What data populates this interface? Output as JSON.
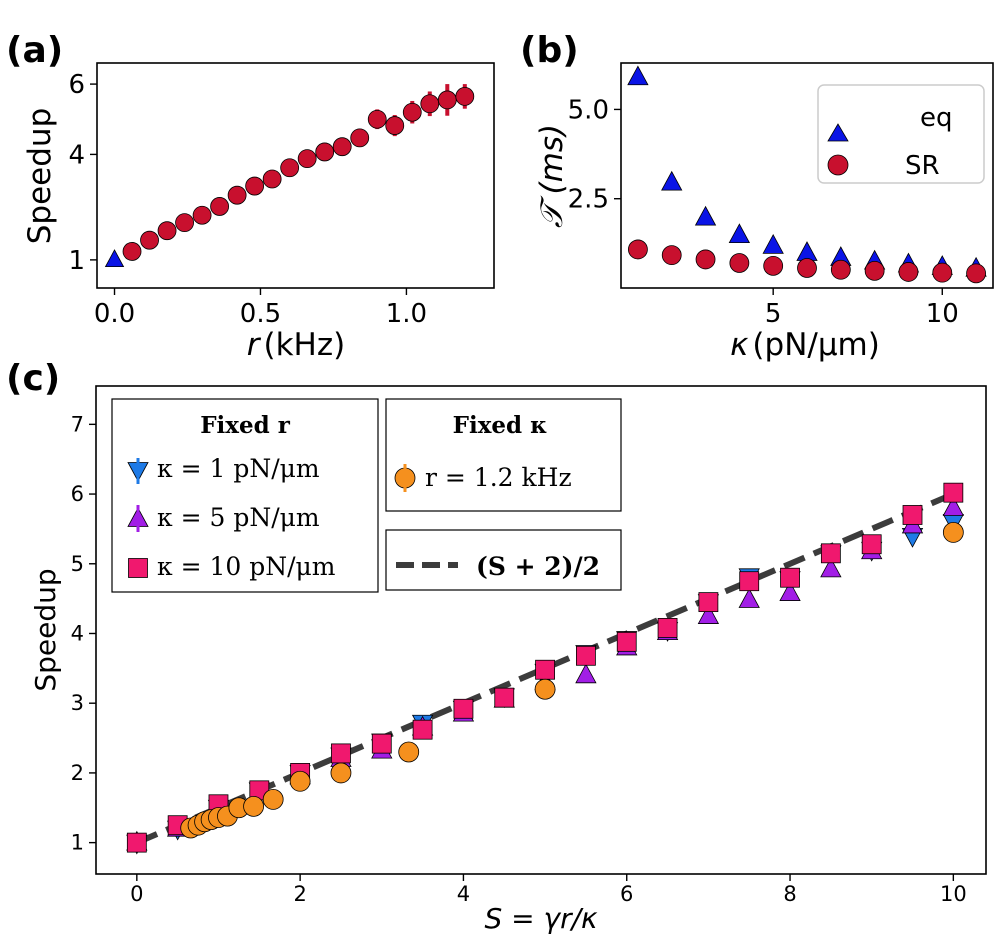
{
  "colors": {
    "blue": "#0a14e6",
    "crimson": "#c8102e",
    "magenta": "#f0186e",
    "purple": "#a21ee6",
    "lightblue": "#1e7ae6",
    "orange": "#f5901e",
    "dash": "#3c3c3c"
  },
  "chart_data": [
    {
      "panel": "(a)",
      "type": "scatter",
      "xlabel_var": "r",
      "xlabel_unit": "(kHz)",
      "ylabel": "Speedup",
      "xlim": [
        -0.06,
        1.3
      ],
      "ylim": [
        0.2,
        6.6
      ],
      "xticks": [
        0.0,
        0.5,
        1.0
      ],
      "xtick_labels": [
        "0.0",
        "0.5",
        "1.0"
      ],
      "yticks": [
        1,
        4,
        6
      ],
      "ytick_labels": [
        "1",
        "4",
        "6"
      ],
      "series": [
        {
          "name": "eq",
          "marker": "triangle",
          "color": "blue",
          "points": [
            {
              "x": 0.0,
              "y": 1.0
            }
          ]
        },
        {
          "name": "SR",
          "marker": "circle",
          "color": "crimson",
          "points": [
            {
              "x": 0.06,
              "y": 1.24,
              "err": 0.05
            },
            {
              "x": 0.12,
              "y": 1.56,
              "err": 0.06
            },
            {
              "x": 0.18,
              "y": 1.83,
              "err": 0.06
            },
            {
              "x": 0.24,
              "y": 2.06,
              "err": 0.07
            },
            {
              "x": 0.3,
              "y": 2.27,
              "err": 0.08
            },
            {
              "x": 0.36,
              "y": 2.52,
              "err": 0.09
            },
            {
              "x": 0.42,
              "y": 2.84,
              "err": 0.1
            },
            {
              "x": 0.48,
              "y": 3.1,
              "err": 0.12
            },
            {
              "x": 0.54,
              "y": 3.3,
              "err": 0.14
            },
            {
              "x": 0.6,
              "y": 3.62,
              "err": 0.15
            },
            {
              "x": 0.66,
              "y": 3.88,
              "err": 0.18
            },
            {
              "x": 0.72,
              "y": 4.07,
              "err": 0.2
            },
            {
              "x": 0.78,
              "y": 4.22,
              "err": 0.22
            },
            {
              "x": 0.84,
              "y": 4.47,
              "err": 0.25
            },
            {
              "x": 0.9,
              "y": 5.0,
              "err": 0.28
            },
            {
              "x": 0.96,
              "y": 4.82,
              "err": 0.3
            },
            {
              "x": 1.02,
              "y": 5.2,
              "err": 0.32
            },
            {
              "x": 1.08,
              "y": 5.44,
              "err": 0.35
            },
            {
              "x": 1.14,
              "y": 5.55,
              "err": 0.45
            },
            {
              "x": 1.2,
              "y": 5.65,
              "err": 0.35
            }
          ]
        }
      ]
    },
    {
      "panel": "(b)",
      "type": "scatter",
      "xlabel_var": "κ",
      "xlabel_unit": "(pN/μm)",
      "ylabel": "𝒯 (ms)",
      "xlim": [
        0.5,
        11.5
      ],
      "ylim": [
        0.0,
        6.3
      ],
      "xticks": [
        5,
        10
      ],
      "xtick_labels": [
        "5",
        "10"
      ],
      "yticks": [
        2.5,
        5.0
      ],
      "ytick_labels": [
        "2.5",
        "5.0"
      ],
      "legend": {
        "position": "top-right",
        "entries": [
          "eq",
          "SR"
        ]
      },
      "series": [
        {
          "name": "eq",
          "marker": "triangle",
          "color": "blue",
          "points": [
            {
              "x": 1,
              "y": 5.9
            },
            {
              "x": 2,
              "y": 2.95
            },
            {
              "x": 3,
              "y": 1.97
            },
            {
              "x": 4,
              "y": 1.48
            },
            {
              "x": 5,
              "y": 1.18
            },
            {
              "x": 6,
              "y": 0.98
            },
            {
              "x": 7,
              "y": 0.84
            },
            {
              "x": 8,
              "y": 0.74
            },
            {
              "x": 9,
              "y": 0.66
            },
            {
              "x": 10,
              "y": 0.59
            },
            {
              "x": 11,
              "y": 0.54
            }
          ]
        },
        {
          "name": "SR",
          "marker": "circle",
          "color": "crimson",
          "points": [
            {
              "x": 1,
              "y": 1.08
            },
            {
              "x": 2,
              "y": 0.92
            },
            {
              "x": 3,
              "y": 0.8
            },
            {
              "x": 4,
              "y": 0.7
            },
            {
              "x": 5,
              "y": 0.62
            },
            {
              "x": 6,
              "y": 0.56
            },
            {
              "x": 7,
              "y": 0.51
            },
            {
              "x": 8,
              "y": 0.48
            },
            {
              "x": 9,
              "y": 0.45
            },
            {
              "x": 10,
              "y": 0.43
            },
            {
              "x": 11,
              "y": 0.41
            }
          ]
        }
      ]
    },
    {
      "panel": "(c)",
      "type": "scatter",
      "xlabel": "S = γr/κ",
      "ylabel": "Speedup",
      "xlim": [
        -0.5,
        10.4
      ],
      "ylim": [
        0.55,
        7.55
      ],
      "xticks": [
        0,
        2,
        4,
        6,
        8,
        10
      ],
      "xtick_labels": [
        "0",
        "2",
        "4",
        "6",
        "8",
        "10"
      ],
      "yticks": [
        1,
        2,
        3,
        4,
        5,
        6,
        7
      ],
      "ytick_labels": [
        "1",
        "2",
        "3",
        "4",
        "5",
        "6",
        "7"
      ],
      "legend_fixed_r": {
        "title": "Fixed r",
        "entries": [
          "κ = 1 pN/μm",
          "κ = 5 pN/μm",
          "κ = 10 pN/μm"
        ]
      },
      "legend_fixed_k": {
        "title": "Fixed κ",
        "entries": [
          "r = 1.2 kHz",
          "(S + 2)/2"
        ]
      },
      "theory_line": {
        "label": "(S + 2)/2",
        "x": [
          0,
          10
        ],
        "y": [
          1,
          6
        ]
      },
      "series": [
        {
          "name": "κ = 1 pN/μm",
          "marker": "triangle-down",
          "color": "lightblue",
          "points": [
            {
              "x": 0,
              "y": 1.0
            },
            {
              "x": 0.5,
              "y": 1.2
            },
            {
              "x": 1.0,
              "y": 1.5
            },
            {
              "x": 1.5,
              "y": 1.75
            },
            {
              "x": 2.0,
              "y": 2.0
            },
            {
              "x": 2.5,
              "y": 2.25
            },
            {
              "x": 3.0,
              "y": 2.45
            },
            {
              "x": 3.5,
              "y": 2.72
            },
            {
              "x": 4.0,
              "y": 2.92
            },
            {
              "x": 4.5,
              "y": 3.1
            },
            {
              "x": 5.0,
              "y": 3.45
            },
            {
              "x": 5.5,
              "y": 3.72
            },
            {
              "x": 6.0,
              "y": 3.92
            },
            {
              "x": 6.5,
              "y": 4.05
            },
            {
              "x": 7.0,
              "y": 4.45
            },
            {
              "x": 7.5,
              "y": 4.82
            },
            {
              "x": 8.0,
              "y": 4.78
            },
            {
              "x": 8.5,
              "y": 5.15
            },
            {
              "x": 9.0,
              "y": 5.2
            },
            {
              "x": 9.5,
              "y": 5.4
            },
            {
              "x": 10.0,
              "y": 5.6
            }
          ]
        },
        {
          "name": "κ = 5 pN/μm",
          "marker": "triangle-up",
          "color": "purple",
          "points": [
            {
              "x": 0,
              "y": 1.0
            },
            {
              "x": 0.5,
              "y": 1.2
            },
            {
              "x": 1.0,
              "y": 1.45
            },
            {
              "x": 1.5,
              "y": 1.72
            },
            {
              "x": 2.0,
              "y": 1.95
            },
            {
              "x": 2.5,
              "y": 2.2
            },
            {
              "x": 3.0,
              "y": 2.32
            },
            {
              "x": 3.5,
              "y": 2.65
            },
            {
              "x": 4.0,
              "y": 2.85
            },
            {
              "x": 4.5,
              "y": 3.05
            },
            {
              "x": 5.0,
              "y": 3.3
            },
            {
              "x": 5.5,
              "y": 3.4
            },
            {
              "x": 6.0,
              "y": 3.8
            },
            {
              "x": 6.5,
              "y": 4.02
            },
            {
              "x": 7.0,
              "y": 4.25
            },
            {
              "x": 7.5,
              "y": 4.48
            },
            {
              "x": 8.0,
              "y": 4.58
            },
            {
              "x": 8.5,
              "y": 4.92
            },
            {
              "x": 9.0,
              "y": 5.18
            },
            {
              "x": 9.5,
              "y": 5.55
            },
            {
              "x": 10.0,
              "y": 5.8
            }
          ]
        },
        {
          "name": "κ = 10 pN/μm",
          "marker": "square",
          "color": "magenta",
          "points": [
            {
              "x": 0,
              "y": 1.0
            },
            {
              "x": 0.5,
              "y": 1.25
            },
            {
              "x": 1.0,
              "y": 1.55
            },
            {
              "x": 1.5,
              "y": 1.75
            },
            {
              "x": 2.0,
              "y": 2.0
            },
            {
              "x": 2.5,
              "y": 2.28
            },
            {
              "x": 3.0,
              "y": 2.42
            },
            {
              "x": 3.5,
              "y": 2.62
            },
            {
              "x": 4.0,
              "y": 2.92
            },
            {
              "x": 4.5,
              "y": 3.08
            },
            {
              "x": 5.0,
              "y": 3.48
            },
            {
              "x": 5.5,
              "y": 3.68
            },
            {
              "x": 6.0,
              "y": 3.88
            },
            {
              "x": 6.5,
              "y": 4.08
            },
            {
              "x": 7.0,
              "y": 4.45
            },
            {
              "x": 7.5,
              "y": 4.75
            },
            {
              "x": 8.0,
              "y": 4.8
            },
            {
              "x": 8.5,
              "y": 5.15
            },
            {
              "x": 9.0,
              "y": 5.28
            },
            {
              "x": 9.5,
              "y": 5.7
            },
            {
              "x": 10.0,
              "y": 6.02
            }
          ]
        },
        {
          "name": "r = 1.2 kHz",
          "marker": "circle",
          "color": "orange",
          "points": [
            {
              "x": 0.66,
              "y": 1.21
            },
            {
              "x": 0.75,
              "y": 1.25
            },
            {
              "x": 0.83,
              "y": 1.3
            },
            {
              "x": 0.91,
              "y": 1.33
            },
            {
              "x": 1.0,
              "y": 1.36
            },
            {
              "x": 1.11,
              "y": 1.38
            },
            {
              "x": 1.25,
              "y": 1.5
            },
            {
              "x": 1.43,
              "y": 1.52
            },
            {
              "x": 1.67,
              "y": 1.62
            },
            {
              "x": 2.0,
              "y": 1.88
            },
            {
              "x": 2.5,
              "y": 2.0
            },
            {
              "x": 3.33,
              "y": 2.3
            },
            {
              "x": 5.0,
              "y": 3.2
            },
            {
              "x": 10.0,
              "y": 5.45
            }
          ]
        }
      ]
    }
  ]
}
